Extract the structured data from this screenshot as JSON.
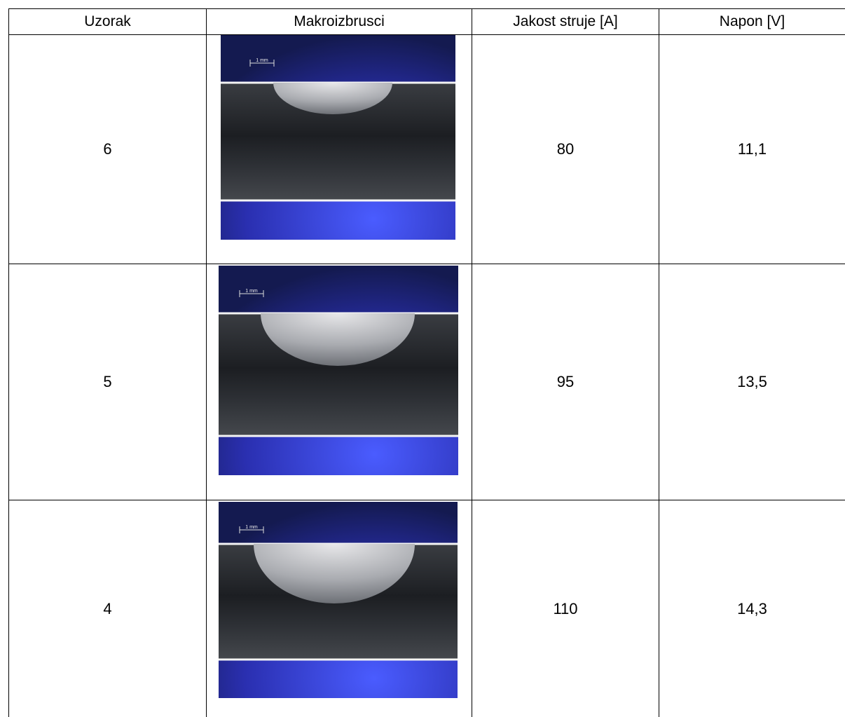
{
  "table": {
    "header": [
      "Uzorak",
      "Makroizbrusci",
      "Jakost struje [A]",
      "Napon [V]"
    ],
    "rows": [
      {
        "sample": 6,
        "scale_label": "1 mm",
        "current": 80,
        "voltage": "11,1"
      },
      {
        "sample": 5,
        "scale_label": "1 mm",
        "current": 95,
        "voltage": "13,5"
      },
      {
        "sample": 4,
        "scale_label": "1 mm",
        "current": 110,
        "voltage": "14,3"
      }
    ]
  }
}
